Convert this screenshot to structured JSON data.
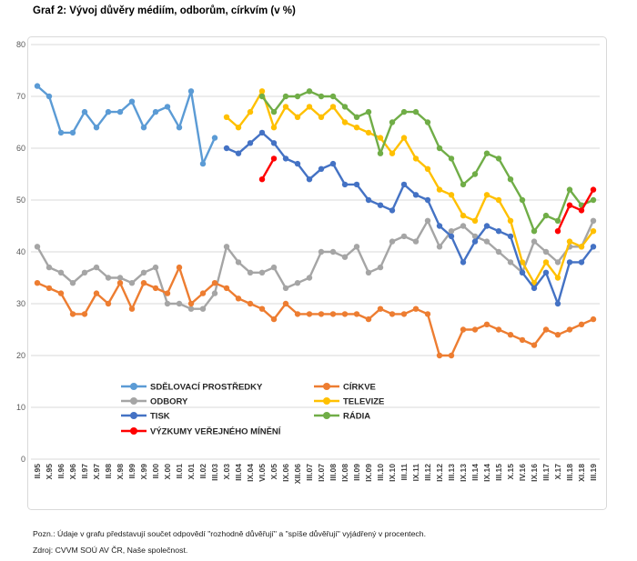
{
  "title": "Graf 2: Vývoj důvěry médiím, odborům, církvím (v %)",
  "footer": {
    "note": "Pozn.: Údaje v grafu představují součet odpovědí \"rozhodně důvěřují\" a \"spíše důvěřují\" vyjádřený v procentech.",
    "source": "Zdroj: CVVM SOÚ AV ČR, Naše společnost."
  },
  "chart_data": {
    "type": "line",
    "title": "Graf 2: Vývoj důvěry médiím, odborům, církvím (v %)",
    "xlabel": "",
    "ylabel": "",
    "ylim": [
      0,
      80
    ],
    "yticks": [
      0,
      10,
      20,
      30,
      40,
      50,
      60,
      70,
      80
    ],
    "grid": true,
    "legend_position": "inside-bottom",
    "categories": [
      "II.95",
      "X.95",
      "II.96",
      "X.96",
      "II.97",
      "X.97",
      "II.98",
      "X.98",
      "II.99",
      "X.99",
      "II.00",
      "X.00",
      "II.01",
      "X.01",
      "II.02",
      "III.03",
      "X.03",
      "III.04",
      "IX.04",
      "VI.05",
      "X.05",
      "IX.06",
      "XII.06",
      "III.07",
      "IX.07",
      "III.08",
      "IX.08",
      "III.09",
      "IX.09",
      "III.10",
      "IX.10",
      "III.11",
      "IX.11",
      "III.12",
      "IX.12",
      "III.13",
      "IX.13",
      "III.14",
      "IX.14",
      "III.15",
      "X.15",
      "IV.16",
      "IX.16",
      "III.17",
      "X.17",
      "III.18",
      "XI.18",
      "III.19"
    ],
    "series": [
      {
        "key": "sdelovaci-prostredky",
        "name": "SDĚLOVACÍ PROSTŘEDKY",
        "color": "#5B9BD5",
        "values": [
          72,
          70,
          63,
          63,
          67,
          64,
          67,
          67,
          69,
          64,
          67,
          68,
          64,
          71,
          57,
          62,
          null,
          null,
          null,
          null,
          null,
          null,
          null,
          null,
          null,
          null,
          null,
          null,
          null,
          null,
          null,
          null,
          null,
          null,
          null,
          null,
          null,
          null,
          null,
          null,
          null,
          null,
          null,
          null,
          null,
          null,
          null,
          null
        ]
      },
      {
        "key": "odbory",
        "name": "ODBORY",
        "color": "#A5A5A5",
        "values": [
          41,
          37,
          36,
          34,
          36,
          37,
          35,
          35,
          34,
          36,
          37,
          30,
          30,
          29,
          29,
          32,
          41,
          38,
          36,
          36,
          37,
          33,
          34,
          35,
          40,
          40,
          39,
          41,
          36,
          37,
          42,
          43,
          42,
          46,
          41,
          44,
          45,
          43,
          42,
          40,
          38,
          36,
          42,
          40,
          38,
          41,
          41,
          46
        ]
      },
      {
        "key": "tisk",
        "name": "TISK",
        "color": "#4472C4",
        "values": [
          null,
          null,
          null,
          null,
          null,
          null,
          null,
          null,
          null,
          null,
          null,
          null,
          null,
          null,
          null,
          null,
          60,
          59,
          61,
          63,
          61,
          58,
          57,
          54,
          56,
          57,
          53,
          53,
          50,
          49,
          48,
          53,
          51,
          50,
          45,
          43,
          38,
          42,
          45,
          44,
          43,
          36,
          33,
          36,
          30,
          38,
          38,
          41
        ]
      },
      {
        "key": "vyzkumy-verejneho-mineni",
        "name": "VÝZKUMY VEŘEJNÉHO MÍNĚNÍ",
        "color": "#FF0000",
        "values": [
          null,
          null,
          null,
          null,
          null,
          null,
          null,
          null,
          null,
          null,
          null,
          null,
          null,
          null,
          null,
          null,
          null,
          null,
          null,
          54,
          58,
          null,
          null,
          null,
          null,
          null,
          null,
          null,
          null,
          null,
          null,
          null,
          null,
          null,
          null,
          null,
          null,
          null,
          null,
          null,
          null,
          null,
          null,
          null,
          44,
          49,
          48,
          52
        ]
      },
      {
        "key": "cirkve",
        "name": "CÍRKVE",
        "color": "#ED7D31",
        "values": [
          34,
          33,
          32,
          28,
          28,
          32,
          30,
          34,
          29,
          34,
          33,
          32,
          37,
          30,
          32,
          34,
          33,
          31,
          30,
          29,
          27,
          30,
          28,
          28,
          28,
          28,
          28,
          28,
          27,
          29,
          28,
          28,
          29,
          28,
          20,
          20,
          25,
          25,
          26,
          25,
          24,
          23,
          22,
          25,
          24,
          25,
          26,
          27
        ]
      },
      {
        "key": "televize",
        "name": "TELEVIZE",
        "color": "#FFC000",
        "values": [
          null,
          null,
          null,
          null,
          null,
          null,
          null,
          null,
          null,
          null,
          null,
          null,
          null,
          null,
          null,
          null,
          66,
          64,
          67,
          71,
          64,
          68,
          66,
          68,
          66,
          68,
          65,
          64,
          63,
          62,
          59,
          62,
          58,
          56,
          52,
          51,
          47,
          46,
          51,
          50,
          46,
          38,
          34,
          38,
          35,
          42,
          41,
          44
        ]
      },
      {
        "key": "radia",
        "name": "RÁDIA",
        "color": "#70AD47",
        "values": [
          null,
          null,
          null,
          null,
          null,
          null,
          null,
          null,
          null,
          null,
          null,
          null,
          null,
          null,
          null,
          null,
          null,
          null,
          null,
          70,
          67,
          70,
          70,
          71,
          70,
          70,
          68,
          66,
          67,
          59,
          65,
          67,
          67,
          65,
          60,
          58,
          53,
          55,
          59,
          58,
          54,
          50,
          44,
          47,
          46,
          52,
          49,
          50
        ]
      }
    ],
    "legend_columns": [
      [
        "sdelovaci-prostredky",
        "odbory",
        "tisk",
        "vyzkumy-verejneho-mineni"
      ],
      [
        "cirkve",
        "televize",
        "radia"
      ]
    ]
  }
}
